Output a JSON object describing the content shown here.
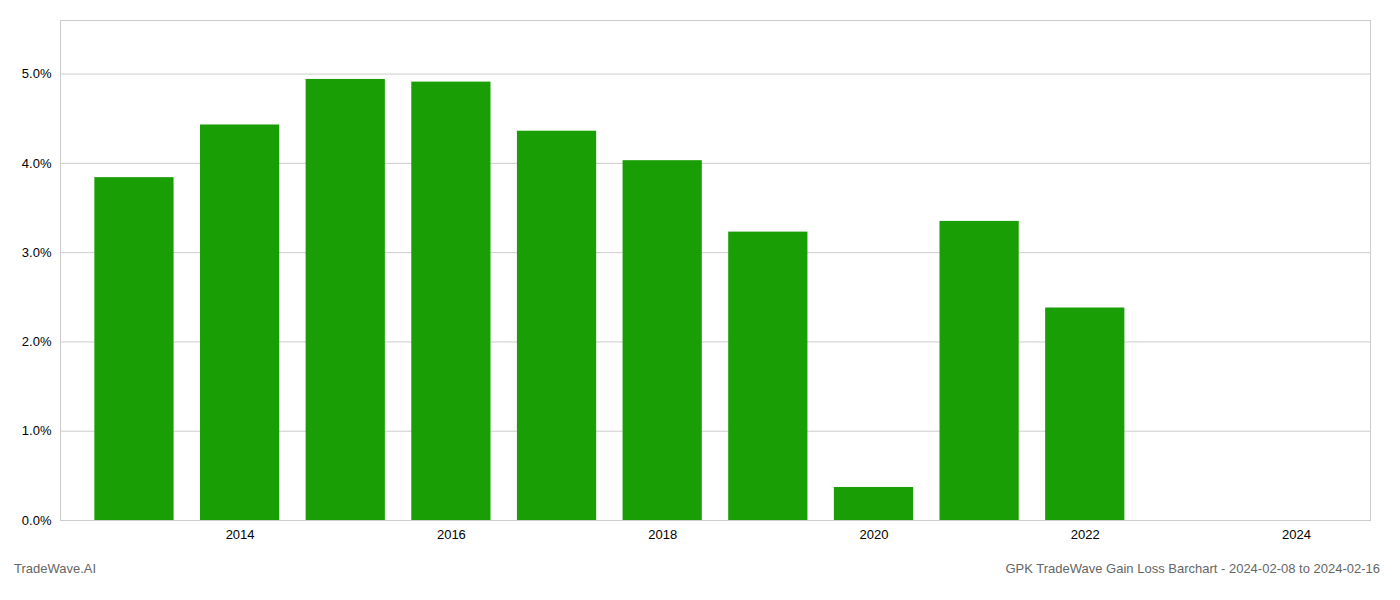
{
  "chart_data": {
    "type": "bar",
    "title": "GPK TradeWave Gain Loss Barchart - 2024-02-08 to 2024-02-16",
    "annotations": [
      "TradeWave.AI"
    ],
    "x": [
      2013,
      2014,
      2015,
      2016,
      2017,
      2018,
      2019,
      2020,
      2021,
      2022,
      2023
    ],
    "values": [
      0.0384,
      0.0443,
      0.0494,
      0.0491,
      0.0436,
      0.0403,
      0.0323,
      0.0037,
      0.0335,
      0.0238,
      0.0
    ],
    "color": "#1a9e06",
    "xlim": [
      2012.3,
      2024.7
    ],
    "xticks": [
      2014,
      2016,
      2018,
      2020,
      2022,
      2024
    ],
    "ylim": [
      0,
      0.056
    ],
    "yticks": [
      {
        "value": 0.0,
        "label": "0.0%"
      },
      {
        "value": 0.01,
        "label": "1.0%"
      },
      {
        "value": 0.02,
        "label": "2.0%"
      },
      {
        "value": 0.03,
        "label": "3.0%"
      },
      {
        "value": 0.04,
        "label": "4.0%"
      },
      {
        "value": 0.05,
        "label": "5.0%"
      }
    ],
    "grid": true
  }
}
